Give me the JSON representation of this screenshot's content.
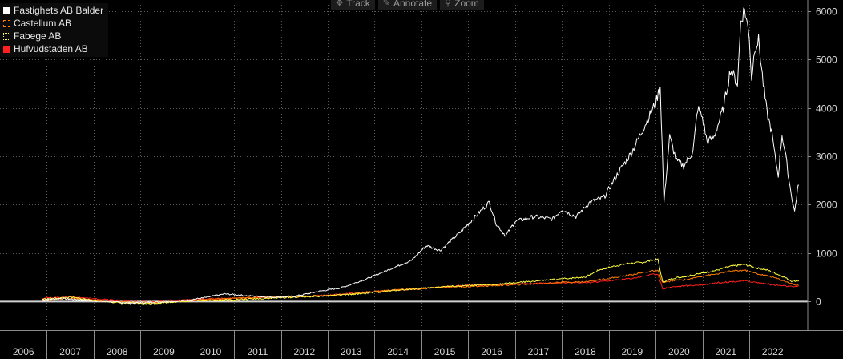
{
  "toolbar": {
    "track_label": "Track",
    "annotate_label": "Annotate",
    "zoom_label": "Zoom"
  },
  "chart_data": {
    "type": "line",
    "xlim": [
      2006,
      2023.25
    ],
    "ylim": [
      -600,
      6200
    ],
    "y_ticks": [
      0,
      1000,
      2000,
      3000,
      4000,
      5000,
      6000
    ],
    "x_tick_labels": [
      "2006",
      "2007",
      "2008",
      "2009",
      "2010",
      "2011",
      "2012",
      "2013",
      "2014",
      "2015",
      "2016",
      "2017",
      "2018",
      "2019",
      "2020",
      "2021",
      "2022"
    ],
    "grid": true,
    "legend_position": "top-left",
    "zero_line": true,
    "series": [
      {
        "name": "Fastighets AB Balder",
        "color": "#ffffff",
        "legend_style": "solid",
        "points": [
          [
            2006.9,
            30
          ],
          [
            2007.3,
            55
          ],
          [
            2007.8,
            25
          ],
          [
            2008.3,
            -10
          ],
          [
            2008.8,
            -40
          ],
          [
            2009.3,
            -20
          ],
          [
            2009.8,
            0
          ],
          [
            2010.3,
            60
          ],
          [
            2010.8,
            150
          ],
          [
            2011.3,
            110
          ],
          [
            2011.8,
            80
          ],
          [
            2012.3,
            100
          ],
          [
            2012.8,
            200
          ],
          [
            2013.3,
            280
          ],
          [
            2013.8,
            450
          ],
          [
            2014.3,
            650
          ],
          [
            2014.8,
            850
          ],
          [
            2015.1,
            1150
          ],
          [
            2015.4,
            1050
          ],
          [
            2015.8,
            1400
          ],
          [
            2016.1,
            1700
          ],
          [
            2016.3,
            1900
          ],
          [
            2016.45,
            2050
          ],
          [
            2016.6,
            1600
          ],
          [
            2016.8,
            1350
          ],
          [
            2017.0,
            1650
          ],
          [
            2017.4,
            1750
          ],
          [
            2017.8,
            1700
          ],
          [
            2018.0,
            1900
          ],
          [
            2018.3,
            1750
          ],
          [
            2018.6,
            2050
          ],
          [
            2018.9,
            2150
          ],
          [
            2019.2,
            2650
          ],
          [
            2019.5,
            3100
          ],
          [
            2019.8,
            3700
          ],
          [
            2020.0,
            4100
          ],
          [
            2020.1,
            4450
          ],
          [
            2020.18,
            2050
          ],
          [
            2020.3,
            3400
          ],
          [
            2020.45,
            2900
          ],
          [
            2020.6,
            2800
          ],
          [
            2020.8,
            3100
          ],
          [
            2020.9,
            4000
          ],
          [
            2021.0,
            3800
          ],
          [
            2021.1,
            3300
          ],
          [
            2021.25,
            3400
          ],
          [
            2021.45,
            4000
          ],
          [
            2021.6,
            4800
          ],
          [
            2021.75,
            4500
          ],
          [
            2021.82,
            5800
          ],
          [
            2021.9,
            6050
          ],
          [
            2022.0,
            5500
          ],
          [
            2022.05,
            4600
          ],
          [
            2022.12,
            5250
          ],
          [
            2022.2,
            5400
          ],
          [
            2022.3,
            4500
          ],
          [
            2022.38,
            3900
          ],
          [
            2022.48,
            3500
          ],
          [
            2022.55,
            3000
          ],
          [
            2022.62,
            2600
          ],
          [
            2022.7,
            3450
          ],
          [
            2022.78,
            3000
          ],
          [
            2022.85,
            2500
          ],
          [
            2022.92,
            2100
          ],
          [
            2022.97,
            1850
          ],
          [
            2023.03,
            2300
          ],
          [
            2023.06,
            2400
          ]
        ]
      },
      {
        "name": "Castellum AB",
        "color": "#ff7a00",
        "legend_style": "dashed",
        "points": [
          [
            2006.9,
            30
          ],
          [
            2007.5,
            60
          ],
          [
            2008.0,
            20
          ],
          [
            2008.6,
            -20
          ],
          [
            2009.2,
            -30
          ],
          [
            2009.8,
            0
          ],
          [
            2010.5,
            40
          ],
          [
            2011.0,
            60
          ],
          [
            2011.5,
            80
          ],
          [
            2012.0,
            90
          ],
          [
            2012.5,
            100
          ],
          [
            2013.0,
            120
          ],
          [
            2013.5,
            150
          ],
          [
            2014.0,
            200
          ],
          [
            2014.5,
            240
          ],
          [
            2015.0,
            250
          ],
          [
            2015.5,
            300
          ],
          [
            2016.0,
            300
          ],
          [
            2016.5,
            320
          ],
          [
            2017.0,
            340
          ],
          [
            2017.5,
            360
          ],
          [
            2018.0,
            390
          ],
          [
            2018.5,
            400
          ],
          [
            2019.0,
            470
          ],
          [
            2019.5,
            550
          ],
          [
            2019.9,
            620
          ],
          [
            2020.05,
            630
          ],
          [
            2020.15,
            380
          ],
          [
            2020.4,
            430
          ],
          [
            2020.7,
            450
          ],
          [
            2021.0,
            520
          ],
          [
            2021.3,
            560
          ],
          [
            2021.6,
            620
          ],
          [
            2021.9,
            640
          ],
          [
            2022.2,
            560
          ],
          [
            2022.5,
            500
          ],
          [
            2022.8,
            400
          ],
          [
            2023.0,
            330
          ],
          [
            2023.06,
            350
          ]
        ]
      },
      {
        "name": "Fabege AB",
        "color": "#ffff40",
        "legend_style": "dotted",
        "points": [
          [
            2006.9,
            40
          ],
          [
            2007.5,
            80
          ],
          [
            2008.0,
            20
          ],
          [
            2008.6,
            -40
          ],
          [
            2009.2,
            -50
          ],
          [
            2009.8,
            -10
          ],
          [
            2010.5,
            20
          ],
          [
            2011.0,
            30
          ],
          [
            2011.5,
            50
          ],
          [
            2012.0,
            70
          ],
          [
            2012.5,
            90
          ],
          [
            2013.0,
            110
          ],
          [
            2013.5,
            140
          ],
          [
            2014.0,
            180
          ],
          [
            2014.5,
            230
          ],
          [
            2015.0,
            260
          ],
          [
            2015.5,
            300
          ],
          [
            2016.0,
            320
          ],
          [
            2016.5,
            340
          ],
          [
            2017.0,
            380
          ],
          [
            2017.5,
            420
          ],
          [
            2018.0,
            460
          ],
          [
            2018.5,
            500
          ],
          [
            2018.8,
            650
          ],
          [
            2019.1,
            720
          ],
          [
            2019.4,
            780
          ],
          [
            2019.7,
            800
          ],
          [
            2019.95,
            850
          ],
          [
            2020.05,
            860
          ],
          [
            2020.15,
            400
          ],
          [
            2020.4,
            480
          ],
          [
            2020.7,
            520
          ],
          [
            2021.0,
            580
          ],
          [
            2021.3,
            640
          ],
          [
            2021.6,
            720
          ],
          [
            2021.9,
            760
          ],
          [
            2022.1,
            700
          ],
          [
            2022.4,
            640
          ],
          [
            2022.7,
            520
          ],
          [
            2022.9,
            420
          ],
          [
            2023.06,
            420
          ]
        ]
      },
      {
        "name": "Hufvudstaden AB",
        "color": "#ff2020",
        "legend_style": "solid",
        "points": [
          [
            2006.9,
            60
          ],
          [
            2007.5,
            90
          ],
          [
            2008.0,
            50
          ],
          [
            2008.6,
            10
          ],
          [
            2009.2,
            0
          ],
          [
            2009.8,
            20
          ],
          [
            2010.5,
            50
          ],
          [
            2011.0,
            60
          ],
          [
            2011.5,
            70
          ],
          [
            2012.0,
            80
          ],
          [
            2012.5,
            100
          ],
          [
            2013.0,
            120
          ],
          [
            2013.5,
            160
          ],
          [
            2014.0,
            200
          ],
          [
            2014.5,
            230
          ],
          [
            2015.0,
            260
          ],
          [
            2015.5,
            300
          ],
          [
            2016.0,
            330
          ],
          [
            2016.5,
            340
          ],
          [
            2017.0,
            350
          ],
          [
            2017.5,
            370
          ],
          [
            2018.0,
            380
          ],
          [
            2018.5,
            380
          ],
          [
            2019.0,
            420
          ],
          [
            2019.5,
            470
          ],
          [
            2019.9,
            550
          ],
          [
            2020.05,
            560
          ],
          [
            2020.15,
            260
          ],
          [
            2020.4,
            300
          ],
          [
            2020.7,
            320
          ],
          [
            2021.0,
            340
          ],
          [
            2021.3,
            380
          ],
          [
            2021.6,
            400
          ],
          [
            2021.9,
            420
          ],
          [
            2022.2,
            380
          ],
          [
            2022.5,
            340
          ],
          [
            2022.8,
            310
          ],
          [
            2023.0,
            290
          ],
          [
            2023.06,
            320
          ]
        ]
      }
    ]
  }
}
